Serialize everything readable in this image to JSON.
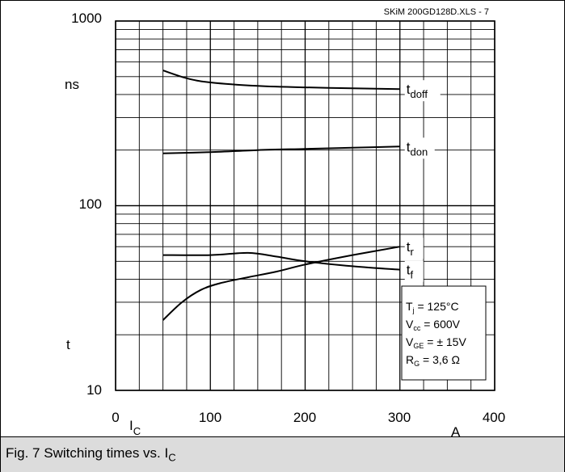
{
  "chart_data": {
    "type": "line",
    "source_label": "SKiM 200GD128D.XLS - 7",
    "x_axis": {
      "range": [
        0,
        400
      ],
      "tick_labels": [
        "0",
        "100",
        "200",
        "300",
        "400"
      ],
      "label_main": "I",
      "label_sub": "C",
      "unit": "A"
    },
    "y_axis": {
      "scale": "log",
      "range": [
        10,
        1000
      ],
      "tick_labels": [
        "10",
        "100",
        "1000"
      ],
      "unit": "ns",
      "symbol": "t"
    },
    "grid": true,
    "series": [
      {
        "name_main": "t",
        "name_sub": "doff",
        "x": [
          50,
          75,
          100,
          150,
          200,
          250,
          300
        ],
        "y": [
          540,
          490,
          465,
          445,
          437,
          432,
          428
        ]
      },
      {
        "name_main": "t",
        "name_sub": "don",
        "x": [
          50,
          100,
          150,
          200,
          250,
          300
        ],
        "y": [
          192,
          195,
          200,
          203,
          206,
          209
        ]
      },
      {
        "name_main": "t",
        "name_sub": "r",
        "x": [
          50,
          70,
          90,
          110,
          140,
          170,
          200,
          250,
          300
        ],
        "y": [
          24,
          30,
          35,
          38,
          41,
          44,
          48,
          54,
          60
        ]
      },
      {
        "name_main": "t",
        "name_sub": "f",
        "x": [
          50,
          100,
          140,
          170,
          200,
          250,
          300
        ],
        "y": [
          54,
          54,
          55.5,
          53,
          50,
          47,
          45
        ]
      }
    ],
    "conditions": [
      {
        "main": "T",
        "sub": "j",
        "rest": " = 125°C"
      },
      {
        "main": "V",
        "sub": "cc",
        "rest": " = 600V"
      },
      {
        "main": "V",
        "sub": "GE",
        "rest": " = ± 15V"
      },
      {
        "main": "R",
        "sub": "G",
        "rest": " = 3,6 Ω"
      }
    ]
  },
  "caption": {
    "text": "Fig. 7 Switching times vs. I",
    "sub": "C"
  }
}
